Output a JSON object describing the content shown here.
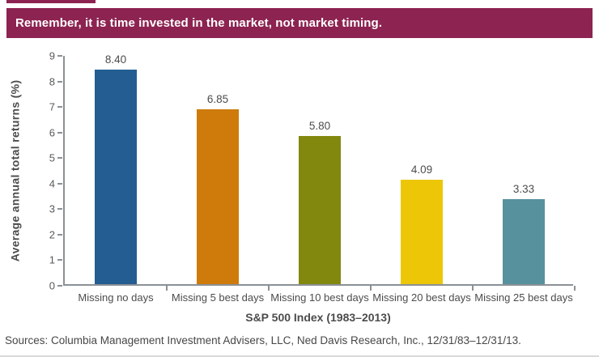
{
  "banner": {
    "title": "Remember, it is time invested in the market, not market timing."
  },
  "colors": {
    "banner_bg": "#8c2351",
    "axis_line": "#8b9196",
    "label_text": "#4c4c4c",
    "tick_text": "#595959"
  },
  "chart_data": {
    "type": "bar",
    "title": "Remember, it is time invested in the market, not market timing.",
    "categories": [
      "Missing no days",
      "Missing 5 best days",
      "Missing 10 best days",
      "Missing 20 best days",
      "Missing 25 best days"
    ],
    "values": [
      8.4,
      6.85,
      5.8,
      4.09,
      3.33
    ],
    "value_labels": [
      "8.40",
      "6.85",
      "5.80",
      "4.09",
      "3.33"
    ],
    "bar_colors": [
      "#235d92",
      "#ce7b0c",
      "#82880e",
      "#edc608",
      "#57919e"
    ],
    "xlabel": "S&P 500 Index (1983–2013)",
    "ylabel": "Average annual total returns (%)",
    "ylim": [
      0,
      9
    ],
    "y_ticks": [
      0,
      1,
      2,
      3,
      4,
      5,
      6,
      7,
      8,
      9
    ],
    "grid": false,
    "legend": false
  },
  "footer": {
    "sources_text": "Sources: Columbia Management Investment Advisers, LLC, Ned Davis Research, Inc., 12/31/83–12/31/13."
  }
}
